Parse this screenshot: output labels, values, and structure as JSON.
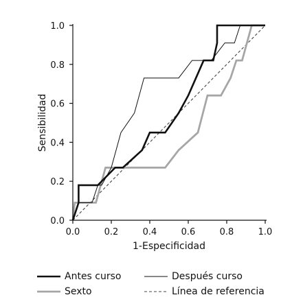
{
  "chart_data": {
    "type": "line",
    "xlabel": "1-Especificidad",
    "ylabel": "Sensibilidad",
    "xlim": [
      0,
      1
    ],
    "ylim": [
      0,
      1
    ],
    "xticks": [
      "0.0",
      "0.2",
      "0.4",
      "0.6",
      "0.8",
      "1.0"
    ],
    "yticks": [
      "0.0",
      "0.2",
      "0.4",
      "0.6",
      "0.8",
      "1.0"
    ],
    "grid": false,
    "legend_position": "bottom",
    "series": [
      {
        "name": "Antes curso",
        "color": "#111111",
        "style": "thick",
        "points": [
          [
            0,
            0
          ],
          [
            0.03,
            0.09
          ],
          [
            0.03,
            0.18
          ],
          [
            0.1,
            0.18
          ],
          [
            0.13,
            0.18
          ],
          [
            0.22,
            0.27
          ],
          [
            0.26,
            0.27
          ],
          [
            0.36,
            0.36
          ],
          [
            0.4,
            0.45
          ],
          [
            0.48,
            0.45
          ],
          [
            0.55,
            0.55
          ],
          [
            0.6,
            0.64
          ],
          [
            0.64,
            0.73
          ],
          [
            0.68,
            0.82
          ],
          [
            0.73,
            0.82
          ],
          [
            0.75,
            0.91
          ],
          [
            0.75,
            1.0
          ],
          [
            0.87,
            1.0
          ],
          [
            1.0,
            1.0
          ]
        ]
      },
      {
        "name": "Después curso",
        "color": "#111111",
        "style": "thin",
        "points": [
          [
            0,
            0
          ],
          [
            0.03,
            0.09
          ],
          [
            0.1,
            0.09
          ],
          [
            0.13,
            0.18
          ],
          [
            0.15,
            0.18
          ],
          [
            0.2,
            0.27
          ],
          [
            0.25,
            0.45
          ],
          [
            0.32,
            0.55
          ],
          [
            0.37,
            0.73
          ],
          [
            0.5,
            0.73
          ],
          [
            0.55,
            0.73
          ],
          [
            0.62,
            0.82
          ],
          [
            0.68,
            0.82
          ],
          [
            0.72,
            0.82
          ],
          [
            0.79,
            0.91
          ],
          [
            0.84,
            0.91
          ],
          [
            0.87,
            1.0
          ],
          [
            1.0,
            1.0
          ]
        ]
      },
      {
        "name": "Sexto",
        "color": "#a6a6a6",
        "style": "thick-gray",
        "points": [
          [
            0,
            0
          ],
          [
            0.01,
            0.09
          ],
          [
            0.08,
            0.09
          ],
          [
            0.12,
            0.09
          ],
          [
            0.17,
            0.27
          ],
          [
            0.25,
            0.27
          ],
          [
            0.36,
            0.27
          ],
          [
            0.48,
            0.27
          ],
          [
            0.55,
            0.36
          ],
          [
            0.65,
            0.45
          ],
          [
            0.7,
            0.64
          ],
          [
            0.77,
            0.64
          ],
          [
            0.82,
            0.73
          ],
          [
            0.85,
            0.82
          ],
          [
            0.88,
            0.82
          ],
          [
            0.93,
            1.0
          ],
          [
            1.0,
            1.0
          ]
        ]
      },
      {
        "name": "Línea de referencia",
        "color": "#444444",
        "style": "dashed",
        "points": [
          [
            0,
            0
          ],
          [
            1,
            1
          ]
        ]
      }
    ]
  }
}
